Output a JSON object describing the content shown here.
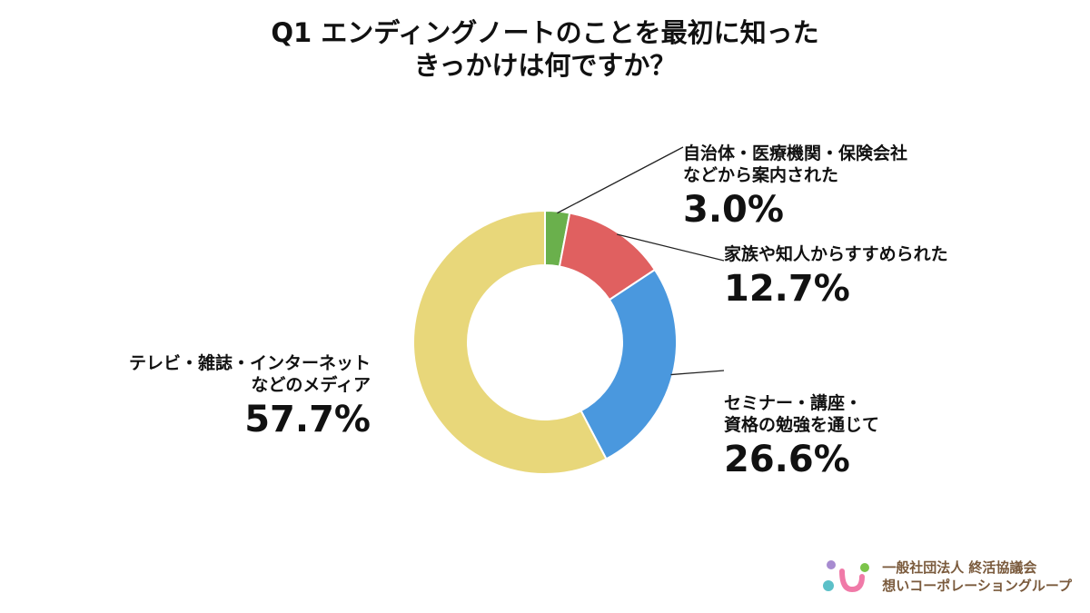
{
  "title": {
    "line1": "Q1 エンディングノートのことを最初に知った",
    "line2": "きっかけは何ですか？"
  },
  "chart_data": {
    "type": "pie",
    "variant": "donut",
    "slices": [
      {
        "label_line1": "自治体・医療機関・保険会社",
        "label_line2": "などから案内された",
        "value": 3.0,
        "value_label": "3.0%",
        "color": "#6ab04c"
      },
      {
        "label_line1": "家族や知人からすすめられた",
        "label_line2": "",
        "value": 12.7,
        "value_label": "12.7%",
        "color": "#e06060"
      },
      {
        "label_line1": "セミナー・講座・",
        "label_line2": "資格の勉強を通じて",
        "value": 26.6,
        "value_label": "26.6%",
        "color": "#4a98de"
      },
      {
        "label_line1": "テレビ・雑誌・インターネット",
        "label_line2": "などのメディア",
        "value": 57.7,
        "value_label": "57.7%",
        "color": "#e8d77a"
      }
    ]
  },
  "footer": {
    "org_line1": "一般社団法人 終活協議会",
    "org_line2": "想いコーポレーショングループ"
  },
  "colors": {
    "logo_purple": "#a78bd0",
    "logo_green": "#7cc44a",
    "logo_teal": "#5bc0c8",
    "logo_pink": "#f07aa8",
    "footer_text": "#7a5a3c"
  }
}
